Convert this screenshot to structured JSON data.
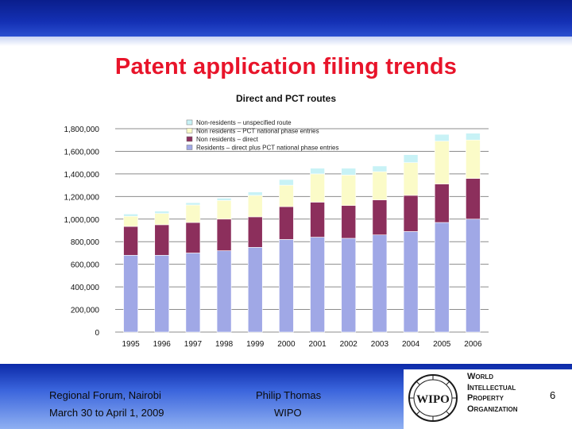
{
  "slide": {
    "title": "Patent application filing trends",
    "footer_left_line1": "Regional Forum, Nairobi",
    "footer_left_line2": "March 30 to April 1, 2009",
    "footer_mid_line1": "Philip Thomas",
    "footer_mid_line2": "WIPO",
    "page_number": "6",
    "logo_text": "WIPO",
    "org_lines": [
      "World",
      "Intellectual",
      "Property",
      "Organization"
    ]
  },
  "colors": {
    "header_band": "#1430b4",
    "title_red": "#e8142a",
    "residents": "#a0a8e6",
    "nonres_direct": "#8c2f5c",
    "nonres_pct": "#fbfbc8",
    "unspecified": "#c8f2f6"
  },
  "chart_data": {
    "type": "bar",
    "stacked": true,
    "title": "Direct and PCT routes",
    "categories": [
      "1995",
      "1996",
      "1997",
      "1998",
      "1999",
      "2000",
      "2001",
      "2002",
      "2003",
      "2004",
      "2005",
      "2006"
    ],
    "ylim": [
      0,
      1800000
    ],
    "yticks": [
      "0",
      "200,000",
      "400,000",
      "600,000",
      "800,000",
      "1,000,000",
      "1,200,000",
      "1,400,000",
      "1,600,000",
      "1,800,000"
    ],
    "grid": true,
    "legend_position": "top-center",
    "series": [
      {
        "name": "Residents – direct plus PCT national phase entries",
        "color": "#a0a8e6",
        "values": [
          680000,
          680000,
          700000,
          720000,
          750000,
          820000,
          840000,
          830000,
          860000,
          890000,
          970000,
          1000000
        ]
      },
      {
        "name": "Non residents – direct",
        "color": "#8c2f5c",
        "values": [
          255000,
          270000,
          270000,
          280000,
          270000,
          290000,
          310000,
          290000,
          310000,
          320000,
          340000,
          360000
        ]
      },
      {
        "name": "Non residents – PCT national phase entries",
        "color": "#fbfbc8",
        "values": [
          90000,
          100000,
          155000,
          165000,
          190000,
          190000,
          250000,
          270000,
          250000,
          290000,
          380000,
          340000
        ]
      },
      {
        "name": "Non-residents – unspecified route",
        "color": "#c8f2f6",
        "values": [
          20000,
          20000,
          20000,
          20000,
          30000,
          50000,
          50000,
          60000,
          50000,
          70000,
          60000,
          60000
        ]
      }
    ]
  }
}
